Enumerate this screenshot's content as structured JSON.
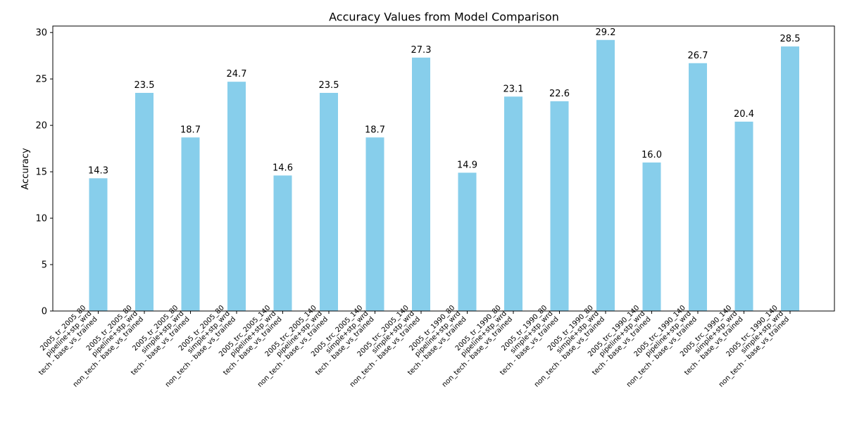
{
  "chart_data": {
    "type": "bar",
    "title": "Accuracy Values from Model Comparison",
    "xlabel": "",
    "ylabel": "Accuracy",
    "ylim": [
      0,
      30.7
    ],
    "yticks": [
      0,
      5,
      10,
      15,
      20,
      25,
      30
    ],
    "grid": false,
    "legend": "none",
    "bar_color": "#87CEEB",
    "categories": [
      [
        "2005_tr_2005_80",
        "pipeline+stp_wrd",
        "tech - base_vs_trained"
      ],
      [
        "2005_tr_2005_80",
        "pipeline+stp_wrd",
        "non_tech - base_vs_trained"
      ],
      [
        "2005_tr_2005_80",
        "simple+stp_wrd",
        "tech - base_vs_trained"
      ],
      [
        "2005_tr_2005_80",
        "simple+stp_wrd",
        "non_tech - base_vs_trained"
      ],
      [
        "2005_trc_2005_140",
        "pipeline+stp_wrd",
        "tech - base_vs_trained"
      ],
      [
        "2005_trc_2005_140",
        "pipeline+stp_wrd",
        "non_tech - base_vs_trained"
      ],
      [
        "2005_trc_2005_140",
        "simple+stp_wrd",
        "tech - base_vs_trained"
      ],
      [
        "2005_trc_2005_140",
        "simple+stp_wrd",
        "non_tech - base_vs_trained"
      ],
      [
        "2005_tr_1990_80",
        "pipeline+stp_wrd",
        "tech - base_vs_trained"
      ],
      [
        "2005_tr_1990_80",
        "pipeline+stp_wrd",
        "non_tech - base_vs_trained"
      ],
      [
        "2005_tr_1990_80",
        "simple+stp_wrd",
        "tech - base_vs_trained"
      ],
      [
        "2005_tr_1990_80",
        "simple+stp_wrd",
        "non_tech - base_vs_trained"
      ],
      [
        "2005_trc_1990_140",
        "pipeline+stp_wrd",
        "tech - base_vs_trained"
      ],
      [
        "2005_trc_1990_140",
        "pipeline+stp_wrd",
        "non_tech - base_vs_trained"
      ],
      [
        "2005_trc_1990_140",
        "simple+stp_wrd",
        "tech - base_vs_trained"
      ],
      [
        "2005_trc_1990_140",
        "simple+stp_wrd",
        "non_tech - base_vs_trained"
      ]
    ],
    "values": [
      14.3,
      23.5,
      18.7,
      24.7,
      14.6,
      23.5,
      18.7,
      27.3,
      14.9,
      23.1,
      22.6,
      29.2,
      16.0,
      26.7,
      20.4,
      28.5
    ],
    "data_labels": [
      "14.3",
      "23.5",
      "18.7",
      "24.7",
      "14.6",
      "23.5",
      "18.7",
      "27.3",
      "14.9",
      "23.1",
      "22.6",
      "29.2",
      "16.0",
      "26.7",
      "20.4",
      "28.5"
    ]
  }
}
